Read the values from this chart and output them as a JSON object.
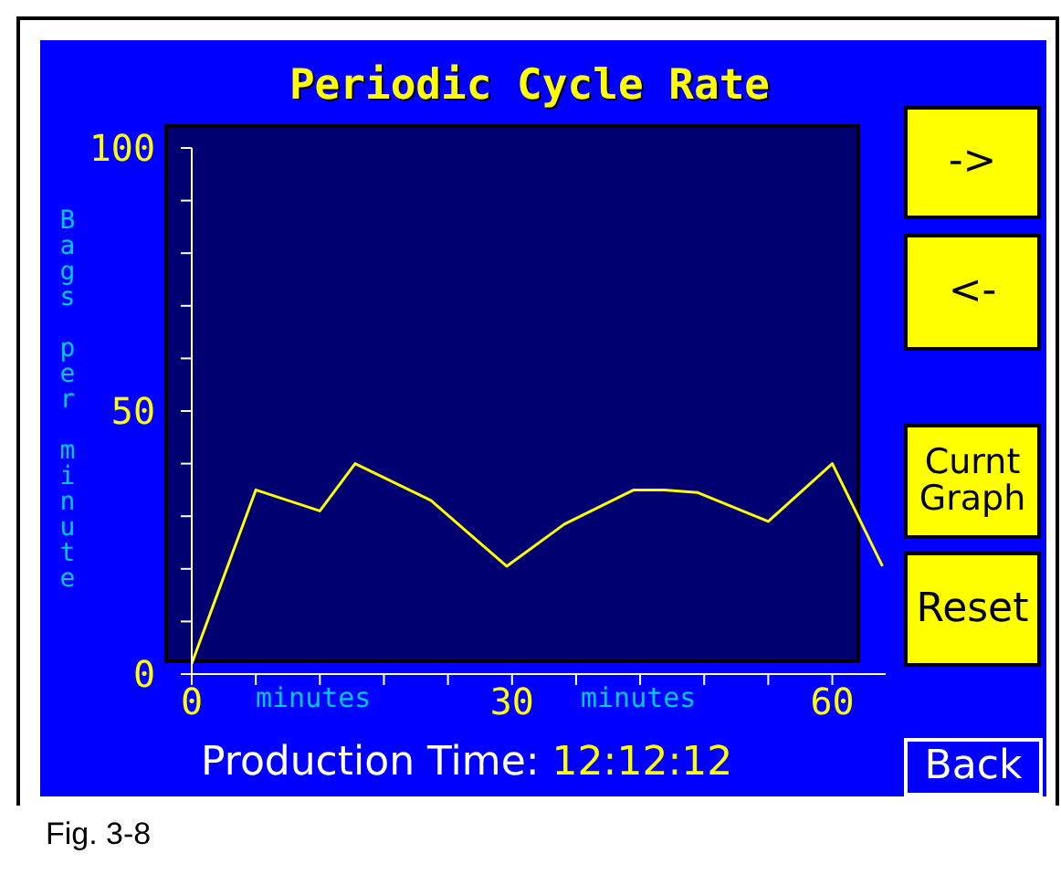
{
  "chart_data": {
    "type": "line",
    "title": "Periodic Cycle Rate",
    "xlabel": "minutes",
    "ylabel": "Bags per minute",
    "x": [
      0,
      6,
      12,
      15.3,
      22.4,
      29.5,
      34.9,
      41.4,
      44.3,
      47.4,
      54,
      60,
      64.7
    ],
    "series": [
      {
        "color": "#ffff00",
        "values": [
          2,
          35,
          31,
          40,
          33,
          20.5,
          28.5,
          35,
          35,
          34.5,
          29,
          40,
          20.5
        ]
      }
    ],
    "xlim": [
      0,
      65
    ],
    "xticks": [
      0,
      {
        "value": 6,
        "label": null
      },
      {
        "value": 12,
        "label": null
      },
      {
        "value": 18,
        "label": null
      },
      {
        "value": 24,
        "label": null
      },
      30,
      {
        "value": 36,
        "label": null
      },
      {
        "value": 42,
        "label": null
      },
      {
        "value": 48,
        "label": null
      },
      {
        "value": 54,
        "label": null
      },
      60
    ],
    "ylim": [
      0,
      100
    ],
    "yticks": [
      0,
      {
        "value": 10,
        "label": null
      },
      {
        "value": 20,
        "label": null
      },
      {
        "value": 30,
        "label": null
      },
      {
        "value": 40,
        "label": null
      },
      50,
      {
        "value": 60,
        "label": null
      },
      {
        "value": 70,
        "label": null
      },
      {
        "value": 80,
        "label": null
      },
      {
        "value": 90,
        "label": null
      },
      100
    ],
    "grid": false,
    "legend": false,
    "marker": "none",
    "line_style": "solid",
    "annotations": [
      "->",
      "<-",
      "Curnt Graph",
      "Reset",
      "Back",
      "Production Time: 12:12:12",
      "Fig. 3-8"
    ]
  }
}
